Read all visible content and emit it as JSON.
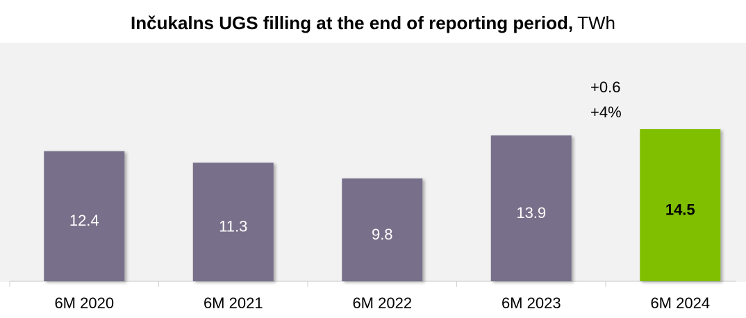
{
  "chart_data": {
    "type": "bar",
    "title": "Inčukalns UGS filling at the end of reporting period,",
    "unit": "TWh",
    "categories": [
      "6M 2020",
      "6M 2021",
      "6M 2022",
      "6M 2023",
      "6M 2024"
    ],
    "values": [
      12.4,
      11.3,
      9.8,
      13.9,
      14.5
    ],
    "colors": [
      "#786f8a",
      "#786f8a",
      "#786f8a",
      "#786f8a",
      "#80be00"
    ],
    "annotations": [
      "+0.6",
      "+4%"
    ]
  }
}
